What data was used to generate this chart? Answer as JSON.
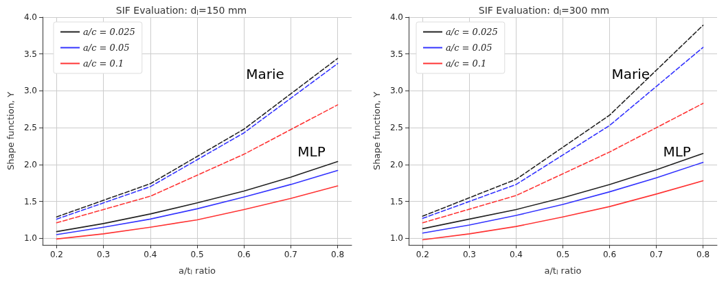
{
  "chart_data": [
    {
      "type": "line",
      "title": "SIF Evaluation: d$_{l}$=150 mm",
      "xlabel": "a/t$_{l}$ ratio",
      "ylabel": "Shape function, Y",
      "xlim": [
        0.17,
        0.83
      ],
      "xticks": [
        0.2,
        0.3,
        0.4,
        0.5,
        0.6,
        0.7,
        0.8
      ],
      "ylim": [
        0.91,
        4.0
      ],
      "yticks": [
        {
          "value": 1,
          "label": "1.0"
        },
        1.5,
        {
          "value": 2,
          "label": "2.0"
        },
        2.5,
        {
          "value": 3,
          "label": "3.0"
        },
        3.5,
        {
          "value": 4,
          "label": "4.0"
        }
      ],
      "grid": true,
      "legend": "top left",
      "marker": "none",
      "annotations": [
        "Marie",
        "MLP"
      ],
      "series": [
        {
          "name": "a/c = 0.025",
          "color": "#222222",
          "line_style": "solid",
          "x": [
            0.2,
            0.3,
            0.4,
            0.5,
            0.6,
            0.7,
            0.8
          ],
          "values": [
            1.09,
            1.2,
            1.33,
            1.48,
            1.64,
            1.83,
            2.04
          ]
        },
        {
          "name": "a/c = 0.05",
          "color": "#3333ff",
          "line_style": "solid",
          "x": [
            0.2,
            0.3,
            0.4,
            0.5,
            0.6,
            0.7,
            0.8
          ],
          "values": [
            1.05,
            1.15,
            1.26,
            1.4,
            1.56,
            1.73,
            1.92
          ]
        },
        {
          "name": "a/c = 0.1",
          "color": "#ff3333",
          "line_style": "solid",
          "x": [
            0.2,
            0.3,
            0.4,
            0.5,
            0.6,
            0.7,
            0.8
          ],
          "values": [
            0.99,
            1.06,
            1.15,
            1.25,
            1.39,
            1.54,
            1.71
          ]
        },
        {
          "color": "#222222",
          "line_style": "dashed",
          "x": [
            0.2,
            0.4,
            0.6,
            0.8
          ],
          "values": [
            1.29,
            1.74,
            2.48,
            3.44
          ]
        },
        {
          "color": "#3333ff",
          "line_style": "dashed",
          "x": [
            0.2,
            0.4,
            0.6,
            0.8
          ],
          "values": [
            1.26,
            1.7,
            2.43,
            3.37
          ]
        },
        {
          "color": "#ff3333",
          "line_style": "dashed",
          "x": [
            0.2,
            0.4,
            0.6,
            0.8
          ],
          "values": [
            1.21,
            1.57,
            2.14,
            2.81
          ]
        }
      ]
    },
    {
      "type": "line",
      "title": "SIF Evaluation: d$_{l}$=300 mm",
      "xlabel": "a/t$_{l}$ ratio",
      "ylabel": "Shape function, Y",
      "xlim": [
        0.17,
        0.83
      ],
      "xticks": [
        0.2,
        0.3,
        0.4,
        0.5,
        0.6,
        0.7,
        0.8
      ],
      "ylim": [
        0.91,
        4.0
      ],
      "yticks": [
        {
          "value": 1,
          "label": "1.0"
        },
        1.5,
        {
          "value": 2,
          "label": "2.0"
        },
        2.5,
        {
          "value": 3,
          "label": "3.0"
        },
        3.5,
        {
          "value": 4,
          "label": "4.0"
        }
      ],
      "grid": true,
      "legend": "top left",
      "marker": "none",
      "annotations": [
        "Marie",
        "MLP"
      ],
      "series": [
        {
          "name": "a/c = 0.025",
          "color": "#222222",
          "line_style": "solid",
          "x": [
            0.2,
            0.3,
            0.4,
            0.5,
            0.6,
            0.7,
            0.8
          ],
          "values": [
            1.13,
            1.26,
            1.39,
            1.55,
            1.73,
            1.93,
            2.15
          ]
        },
        {
          "name": "a/c = 0.05",
          "color": "#3333ff",
          "line_style": "solid",
          "x": [
            0.2,
            0.3,
            0.4,
            0.5,
            0.6,
            0.7,
            0.8
          ],
          "values": [
            1.07,
            1.18,
            1.31,
            1.46,
            1.63,
            1.82,
            2.03
          ]
        },
        {
          "name": "a/c = 0.1",
          "color": "#ff3333",
          "line_style": "solid",
          "x": [
            0.2,
            0.3,
            0.4,
            0.5,
            0.6,
            0.7,
            0.8
          ],
          "values": [
            0.98,
            1.06,
            1.16,
            1.29,
            1.43,
            1.6,
            1.78
          ]
        },
        {
          "color": "#222222",
          "line_style": "dashed",
          "x": [
            0.2,
            0.4,
            0.6,
            0.8
          ],
          "values": [
            1.3,
            1.8,
            2.67,
            3.89
          ]
        },
        {
          "color": "#3333ff",
          "line_style": "dashed",
          "x": [
            0.2,
            0.4,
            0.6,
            0.8
          ],
          "values": [
            1.27,
            1.73,
            2.53,
            3.59
          ]
        },
        {
          "color": "#ff3333",
          "line_style": "dashed",
          "x": [
            0.2,
            0.4,
            0.6,
            0.8
          ],
          "values": [
            1.21,
            1.58,
            2.17,
            2.83
          ]
        }
      ]
    }
  ]
}
